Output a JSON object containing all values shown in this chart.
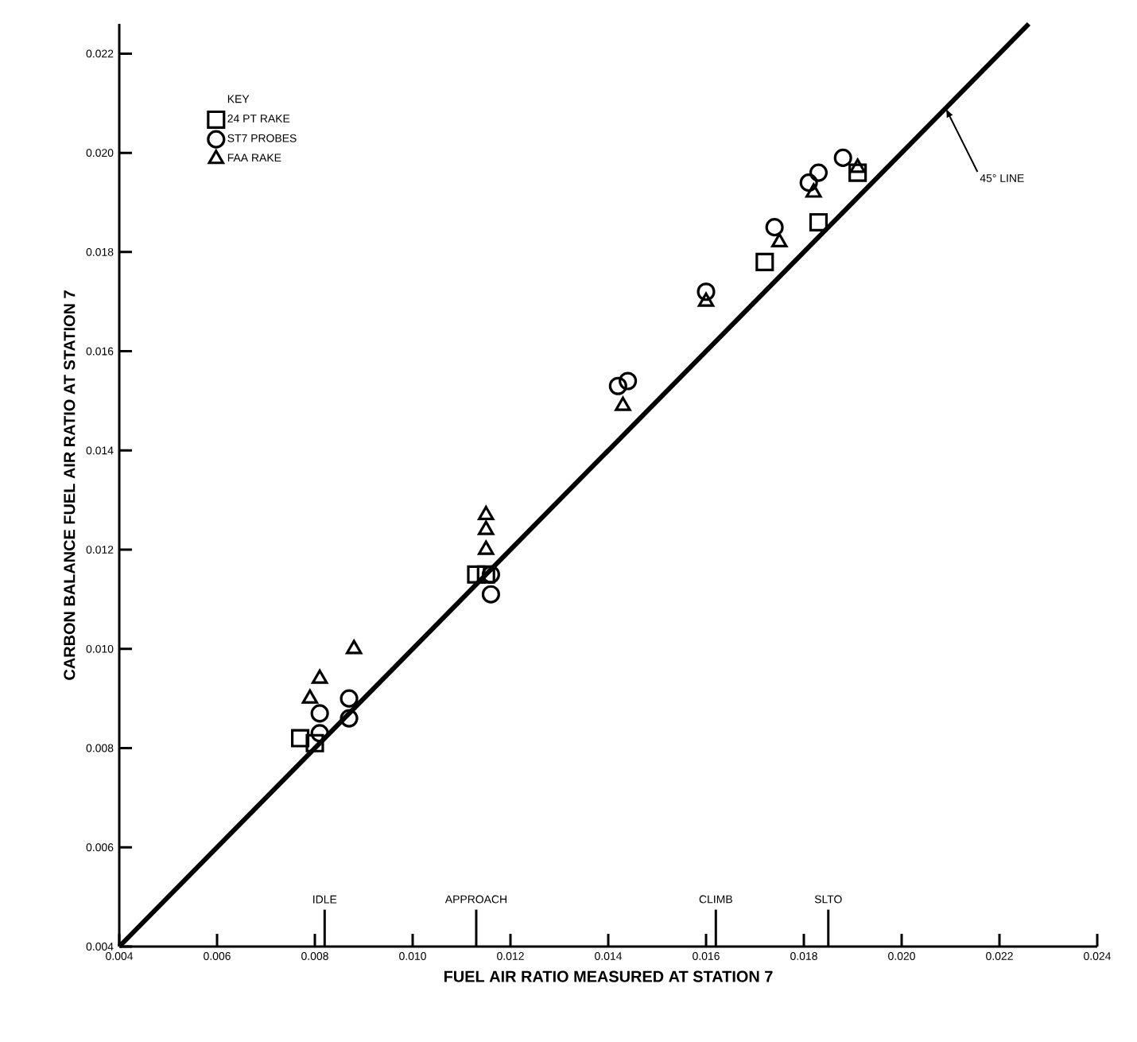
{
  "chart_data": {
    "type": "scatter",
    "xlabel": "FUEL AIR RATIO MEASURED AT STATION 7",
    "ylabel": "CARBON BALANCE FUEL AIR RATIO AT STATION 7",
    "legend_title": "KEY",
    "legend": "top left",
    "grid": false,
    "xlim": [
      0.004,
      0.024
    ],
    "ylim": [
      0.004,
      0.0226
    ],
    "xticks": [
      {
        "value": 0.004,
        "label": "0.004"
      },
      {
        "value": 0.006,
        "label": "0.006"
      },
      {
        "value": 0.008,
        "label": "0.008"
      },
      {
        "value": 0.01,
        "label": "0.010"
      },
      {
        "value": 0.012,
        "label": "0.012"
      },
      {
        "value": 0.014,
        "label": "0.014"
      },
      {
        "value": 0.016,
        "label": "0.016"
      },
      {
        "value": 0.018,
        "label": "0.018"
      },
      {
        "value": 0.02,
        "label": "0.020"
      },
      {
        "value": 0.022,
        "label": "0.022"
      },
      {
        "value": 0.024,
        "label": "0.024"
      }
    ],
    "yticks": [
      {
        "value": 0.004,
        "label": "0.004"
      },
      {
        "value": 0.006,
        "label": "0.006"
      },
      {
        "value": 0.008,
        "label": "0.008"
      },
      {
        "value": 0.01,
        "label": "0.010"
      },
      {
        "value": 0.012,
        "label": "0.012"
      },
      {
        "value": 0.014,
        "label": "0.014"
      },
      {
        "value": 0.016,
        "label": "0.016"
      },
      {
        "value": 0.018,
        "label": "0.018"
      },
      {
        "value": 0.02,
        "label": "0.020"
      },
      {
        "value": 0.022,
        "label": "0.022"
      }
    ],
    "series": [
      {
        "name": "24 PT RAKE",
        "color": "#000000",
        "marker": "square",
        "x": [
          0.0077,
          0.008,
          0.0113,
          0.0115,
          0.0172,
          0.0183,
          0.0191
        ],
        "values": [
          0.0082,
          0.0081,
          0.0115,
          0.0115,
          0.0178,
          0.0186,
          0.0196
        ]
      },
      {
        "name": "ST7 PROBES",
        "color": "#000000",
        "marker": "circle",
        "x": [
          0.0081,
          0.0087,
          0.0087,
          0.0081,
          0.0116,
          0.0116,
          0.0142,
          0.0144,
          0.016,
          0.0174,
          0.0181,
          0.0183,
          0.0188
        ],
        "values": [
          0.0087,
          0.009,
          0.0086,
          0.0083,
          0.0111,
          0.0115,
          0.0153,
          0.0154,
          0.0172,
          0.0185,
          0.0194,
          0.0196,
          0.0199
        ]
      },
      {
        "name": "FAA RAKE",
        "color": "#000000",
        "marker": "triangle",
        "x": [
          0.0081,
          0.0079,
          0.0088,
          0.0115,
          0.0115,
          0.0115,
          0.0143,
          0.016,
          0.0175,
          0.0182,
          0.0191
        ],
        "values": [
          0.0094,
          0.009,
          0.01,
          0.0127,
          0.0124,
          0.012,
          0.0149,
          0.017,
          0.0182,
          0.0192,
          0.0197
        ]
      },
      {
        "type": "line",
        "color": "#000000",
        "line_style": "solid",
        "x": [
          0.004,
          0.0226
        ],
        "values": [
          0.004,
          0.0226
        ]
      }
    ],
    "ref_lines": [
      {
        "axis": "x",
        "value": 0.0082,
        "label": "IDLE"
      },
      {
        "axis": "x",
        "value": 0.0113,
        "label": "APPROACH"
      },
      {
        "axis": "x",
        "value": 0.0162,
        "label": "CLIMB"
      },
      {
        "axis": "x",
        "value": 0.0185,
        "label": "SLTO"
      }
    ],
    "annotations": [
      {
        "text": "45° LINE",
        "x": 0.0209,
        "y": 0.0209
      }
    ]
  }
}
